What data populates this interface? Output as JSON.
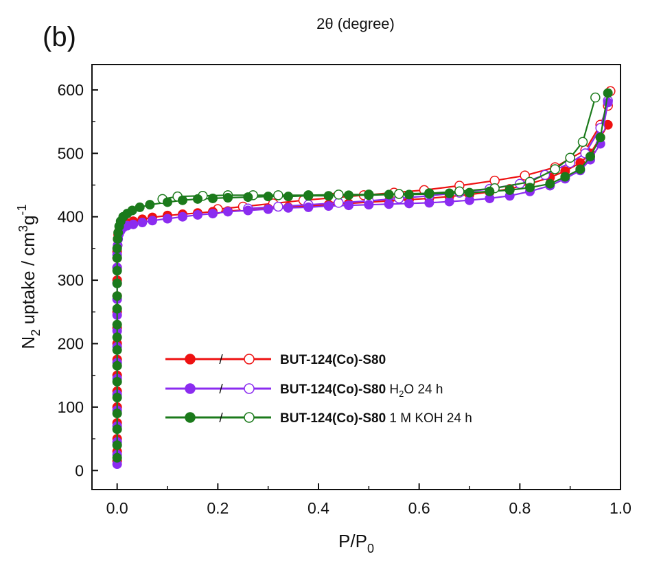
{
  "panel_label": "(b)",
  "top_text": "2θ (degree)",
  "legend_separator": "/",
  "chart_data": {
    "type": "scatter",
    "xlabel": {
      "main": "P/P",
      "sub": "0"
    },
    "ylabel": {
      "pre": "N",
      "sub": "2",
      "mid": " uptake / cm",
      "sup1": "3",
      "post": "g",
      "sup2": "-1"
    },
    "xlim": [
      -0.05,
      1.0
    ],
    "ylim": [
      -30,
      640
    ],
    "xticks": [
      0.0,
      0.2,
      0.4,
      0.6,
      0.8,
      1.0
    ],
    "xtick_labels": [
      "0.0",
      "0.2",
      "0.4",
      "0.6",
      "0.8",
      "1.0"
    ],
    "yticks": [
      0,
      100,
      200,
      300,
      400,
      500,
      600
    ],
    "ytick_labels": [
      "0",
      "100",
      "200",
      "300",
      "400",
      "500",
      "600"
    ],
    "grid": false,
    "legend_position": "lower-center",
    "series": [
      {
        "name": "BUT-124(Co)-S80",
        "label_suffix": "",
        "color": "#ee1111",
        "adsorption": {
          "x": [
            0,
            0,
            0,
            0,
            0,
            0,
            0,
            0,
            0,
            0,
            0,
            0,
            0,
            0,
            0,
            0,
            0.001,
            0.001,
            0.002,
            0.004,
            0.007,
            0.012,
            0.02,
            0.032,
            0.05,
            0.07,
            0.1,
            0.13,
            0.16,
            0.19,
            0.22,
            0.26,
            0.3,
            0.34,
            0.38,
            0.42,
            0.46,
            0.5,
            0.54,
            0.58,
            0.62,
            0.66,
            0.7,
            0.74,
            0.78,
            0.82,
            0.86,
            0.89,
            0.92,
            0.94,
            0.96,
            0.975
          ],
          "y": [
            15,
            30,
            50,
            75,
            100,
            125,
            150,
            175,
            200,
            225,
            250,
            275,
            300,
            320,
            335,
            345,
            355,
            365,
            372,
            378,
            383,
            387,
            390,
            393,
            396,
            399,
            402,
            404,
            406,
            408,
            409,
            411,
            413,
            415,
            417,
            419,
            421,
            423,
            425,
            427,
            429,
            432,
            435,
            439,
            444,
            452,
            462,
            472,
            485,
            500,
            525,
            545
          ]
        },
        "desorption": {
          "x": [
            0.98,
            0.975,
            0.96,
            0.93,
            0.9,
            0.87,
            0.81,
            0.75,
            0.68,
            0.61,
            0.55,
            0.49,
            0.43,
            0.37,
            0.31,
            0.25,
            0.2
          ],
          "y": [
            598,
            575,
            545,
            505,
            492,
            478,
            465,
            457,
            449,
            442,
            438,
            434,
            430,
            426,
            421,
            416,
            412
          ]
        }
      },
      {
        "name": "BUT-124(Co)-S80",
        "label_suffix": {
          "pre": " H",
          "sub": "2",
          "post": "O 24 h"
        },
        "color": "#8b2cf0",
        "adsorption": {
          "x": [
            0,
            0,
            0,
            0,
            0,
            0,
            0,
            0,
            0,
            0,
            0,
            0,
            0,
            0,
            0,
            0.001,
            0.002,
            0.004,
            0.007,
            0.012,
            0.02,
            0.032,
            0.05,
            0.07,
            0.1,
            0.13,
            0.16,
            0.19,
            0.22,
            0.26,
            0.3,
            0.34,
            0.38,
            0.42,
            0.46,
            0.5,
            0.54,
            0.58,
            0.62,
            0.66,
            0.7,
            0.74,
            0.78,
            0.82,
            0.86,
            0.89,
            0.92,
            0.94,
            0.96,
            0.975
          ],
          "y": [
            10,
            25,
            45,
            70,
            95,
            120,
            145,
            170,
            195,
            220,
            245,
            270,
            295,
            320,
            340,
            355,
            365,
            373,
            378,
            383,
            386,
            388,
            391,
            394,
            397,
            400,
            403,
            405,
            408,
            410,
            412,
            414,
            415,
            417,
            418,
            419,
            420,
            421,
            422,
            424,
            426,
            429,
            433,
            440,
            449,
            460,
            473,
            490,
            515,
            580
          ]
        },
        "desorption": {
          "x": [
            0.975,
            0.96,
            0.93,
            0.9,
            0.85,
            0.8,
            0.74,
            0.68,
            0.62,
            0.56,
            0.5,
            0.44,
            0.38,
            0.32,
            0.26
          ],
          "y": [
            583,
            540,
            500,
            485,
            466,
            452,
            444,
            438,
            433,
            429,
            425,
            422,
            419,
            416,
            413
          ]
        }
      },
      {
        "name": "BUT-124(Co)-S80",
        "label_suffix": " 1 M KOH 24 h",
        "color": "#1b7a1b",
        "adsorption": {
          "x": [
            0,
            0,
            0,
            0,
            0,
            0,
            0,
            0,
            0,
            0,
            0,
            0,
            0,
            0,
            0,
            0,
            0.001,
            0.002,
            0.004,
            0.007,
            0.012,
            0.02,
            0.03,
            0.045,
            0.065,
            0.1,
            0.13,
            0.16,
            0.19,
            0.22,
            0.26,
            0.3,
            0.34,
            0.38,
            0.42,
            0.46,
            0.5,
            0.54,
            0.58,
            0.62,
            0.66,
            0.7,
            0.74,
            0.78,
            0.82,
            0.86,
            0.89,
            0.92,
            0.94,
            0.96,
            0.975
          ],
          "y": [
            20,
            40,
            65,
            90,
            115,
            140,
            165,
            190,
            210,
            230,
            255,
            275,
            295,
            315,
            335,
            350,
            365,
            375,
            385,
            393,
            400,
            405,
            410,
            415,
            419,
            423,
            426,
            428,
            429,
            430,
            431,
            432,
            432,
            433,
            433,
            434,
            434,
            435,
            435,
            436,
            437,
            438,
            440,
            442,
            446,
            452,
            463,
            475,
            495,
            525,
            595
          ]
        },
        "desorption": {
          "x": [
            0.95,
            0.925,
            0.9,
            0.87,
            0.82,
            0.75,
            0.68,
            0.62,
            0.56,
            0.5,
            0.44,
            0.38,
            0.32,
            0.27,
            0.22,
            0.17,
            0.12,
            0.09
          ],
          "y": [
            588,
            518,
            493,
            475,
            455,
            445,
            440,
            437,
            436,
            435,
            435,
            434,
            434,
            434,
            434,
            433,
            432,
            428
          ]
        }
      }
    ]
  }
}
